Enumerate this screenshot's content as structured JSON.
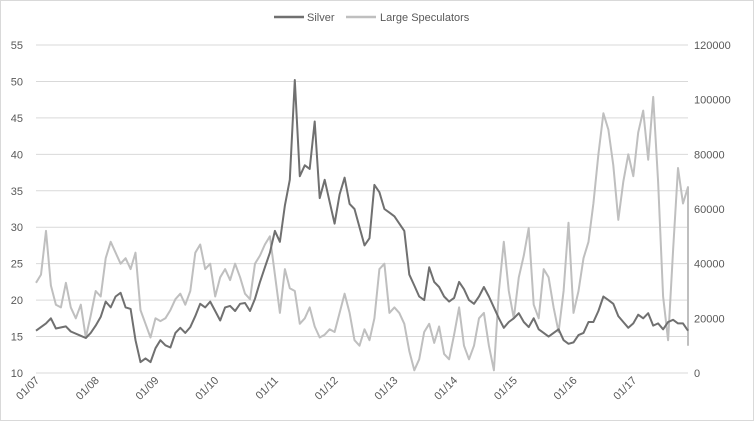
{
  "chart_data": {
    "type": "line",
    "title": "",
    "xlabel": "",
    "ylabel": "",
    "y2label": "",
    "legend_position": "top",
    "grid": "horizontal",
    "x_range": [
      "2007-01",
      "2017-12"
    ],
    "x_tick_labels": [
      "01/07",
      "01/08",
      "01/09",
      "01/10",
      "01/11",
      "01/12",
      "01/13",
      "01/14",
      "01/15",
      "01/16",
      "01/17"
    ],
    "y_left": {
      "min": 10,
      "max": 55,
      "ticks": [
        10,
        15,
        20,
        25,
        30,
        35,
        40,
        45,
        50,
        55
      ]
    },
    "y_right": {
      "min": 0,
      "max": 120000,
      "ticks": [
        0,
        20000,
        40000,
        60000,
        80000,
        100000,
        120000
      ]
    },
    "series": [
      {
        "name": "Silver",
        "axis": "left",
        "color": "#707070",
        "points": [
          [
            "2007-01",
            15.8
          ],
          [
            "2007-03",
            16.8
          ],
          [
            "2007-04",
            17.5
          ],
          [
            "2007-05",
            16.1
          ],
          [
            "2007-07",
            16.4
          ],
          [
            "2007-08",
            15.7
          ],
          [
            "2007-10",
            15.1
          ],
          [
            "2007-11",
            14.8
          ],
          [
            "2007-12",
            15.5
          ],
          [
            "2008-01",
            16.5
          ],
          [
            "2008-02",
            17.7
          ],
          [
            "2008-03",
            19.8
          ],
          [
            "2008-04",
            19.0
          ],
          [
            "2008-05",
            20.5
          ],
          [
            "2008-06",
            21.0
          ],
          [
            "2008-07",
            19.0
          ],
          [
            "2008-08",
            18.8
          ],
          [
            "2008-09",
            14.5
          ],
          [
            "2008-10",
            11.5
          ],
          [
            "2008-11",
            12.0
          ],
          [
            "2008-12",
            11.5
          ],
          [
            "2009-01",
            13.4
          ],
          [
            "2009-02",
            14.5
          ],
          [
            "2009-03",
            13.8
          ],
          [
            "2009-04",
            13.5
          ],
          [
            "2009-05",
            15.5
          ],
          [
            "2009-06",
            16.2
          ],
          [
            "2009-07",
            15.5
          ],
          [
            "2009-08",
            16.3
          ],
          [
            "2009-09",
            17.8
          ],
          [
            "2009-10",
            19.5
          ],
          [
            "2009-11",
            19.0
          ],
          [
            "2009-12",
            19.8
          ],
          [
            "2010-01",
            18.5
          ],
          [
            "2010-02",
            17.2
          ],
          [
            "2010-03",
            19.0
          ],
          [
            "2010-04",
            19.2
          ],
          [
            "2010-05",
            18.5
          ],
          [
            "2010-06",
            19.5
          ],
          [
            "2010-07",
            19.6
          ],
          [
            "2010-08",
            18.5
          ],
          [
            "2010-09",
            20.2
          ],
          [
            "2010-10",
            22.5
          ],
          [
            "2010-11",
            24.5
          ],
          [
            "2010-12",
            26.5
          ],
          [
            "2011-01",
            29.5
          ],
          [
            "2011-02",
            28.0
          ],
          [
            "2011-03",
            33.0
          ],
          [
            "2011-04",
            36.5
          ],
          [
            "2011-05",
            50.2
          ],
          [
            "2011-06",
            37.0
          ],
          [
            "2011-07",
            38.5
          ],
          [
            "2011-08",
            38.0
          ],
          [
            "2011-09",
            44.5
          ],
          [
            "2011-10",
            34.0
          ],
          [
            "2011-11",
            36.5
          ],
          [
            "2011-12",
            33.5
          ],
          [
            "2012-01",
            30.5
          ],
          [
            "2012-02",
            34.5
          ],
          [
            "2012-03",
            36.8
          ],
          [
            "2012-04",
            33.2
          ],
          [
            "2012-05",
            32.5
          ],
          [
            "2012-06",
            30.0
          ],
          [
            "2012-07",
            27.5
          ],
          [
            "2012-08",
            28.5
          ],
          [
            "2012-09",
            35.8
          ],
          [
            "2012-10",
            34.8
          ],
          [
            "2012-11",
            32.5
          ],
          [
            "2012-12",
            32.0
          ],
          [
            "2013-01",
            31.5
          ],
          [
            "2013-02",
            30.5
          ],
          [
            "2013-03",
            29.5
          ],
          [
            "2013-04",
            23.5
          ],
          [
            "2013-05",
            22.0
          ],
          [
            "2013-06",
            20.5
          ],
          [
            "2013-07",
            20.0
          ],
          [
            "2013-08",
            24.5
          ],
          [
            "2013-09",
            22.5
          ],
          [
            "2013-10",
            21.8
          ],
          [
            "2013-11",
            20.5
          ],
          [
            "2013-12",
            19.8
          ],
          [
            "2014-01",
            20.3
          ],
          [
            "2014-02",
            22.5
          ],
          [
            "2014-03",
            21.5
          ],
          [
            "2014-04",
            20.0
          ],
          [
            "2014-05",
            19.5
          ],
          [
            "2014-06",
            20.5
          ],
          [
            "2014-07",
            21.8
          ],
          [
            "2014-08",
            20.5
          ],
          [
            "2014-09",
            19.0
          ],
          [
            "2014-10",
            17.5
          ],
          [
            "2014-11",
            16.2
          ],
          [
            "2014-12",
            17.0
          ],
          [
            "2015-01",
            17.5
          ],
          [
            "2015-02",
            18.2
          ],
          [
            "2015-03",
            17.0
          ],
          [
            "2015-04",
            16.3
          ],
          [
            "2015-05",
            17.5
          ],
          [
            "2015-06",
            16.0
          ],
          [
            "2015-07",
            15.5
          ],
          [
            "2015-08",
            15.0
          ],
          [
            "2015-09",
            15.5
          ],
          [
            "2015-10",
            16.0
          ],
          [
            "2015-11",
            14.5
          ],
          [
            "2015-12",
            14.0
          ],
          [
            "2016-01",
            14.2
          ],
          [
            "2016-02",
            15.2
          ],
          [
            "2016-03",
            15.5
          ],
          [
            "2016-04",
            17.0
          ],
          [
            "2016-05",
            17.0
          ],
          [
            "2016-06",
            18.5
          ],
          [
            "2016-07",
            20.5
          ],
          [
            "2016-08",
            20.0
          ],
          [
            "2016-09",
            19.5
          ],
          [
            "2016-10",
            17.8
          ],
          [
            "2016-11",
            17.0
          ],
          [
            "2016-12",
            16.2
          ],
          [
            "2017-01",
            16.8
          ],
          [
            "2017-02",
            18.0
          ],
          [
            "2017-03",
            17.5
          ],
          [
            "2017-04",
            18.2
          ],
          [
            "2017-05",
            16.5
          ],
          [
            "2017-06",
            16.8
          ],
          [
            "2017-07",
            16.0
          ],
          [
            "2017-08",
            17.0
          ],
          [
            "2017-09",
            17.3
          ],
          [
            "2017-10",
            16.8
          ],
          [
            "2017-11",
            16.8
          ],
          [
            "2017-12",
            15.8
          ]
        ]
      },
      {
        "name": "Large Speculators",
        "axis": "right",
        "color": "#bfbfbf",
        "points": [
          [
            "2007-01",
            33000
          ],
          [
            "2007-02",
            36000
          ],
          [
            "2007-03",
            52000
          ],
          [
            "2007-04",
            32000
          ],
          [
            "2007-05",
            25000
          ],
          [
            "2007-06",
            24000
          ],
          [
            "2007-07",
            33000
          ],
          [
            "2007-08",
            24000
          ],
          [
            "2007-09",
            20000
          ],
          [
            "2007-10",
            25000
          ],
          [
            "2007-11",
            13000
          ],
          [
            "2007-12",
            21000
          ],
          [
            "2008-01",
            30000
          ],
          [
            "2008-02",
            28000
          ],
          [
            "2008-03",
            42000
          ],
          [
            "2008-04",
            48000
          ],
          [
            "2008-05",
            44000
          ],
          [
            "2008-06",
            40000
          ],
          [
            "2008-07",
            42000
          ],
          [
            "2008-08",
            38000
          ],
          [
            "2008-09",
            44000
          ],
          [
            "2008-10",
            23000
          ],
          [
            "2008-11",
            18000
          ],
          [
            "2008-12",
            13000
          ],
          [
            "2009-01",
            20000
          ],
          [
            "2009-02",
            19000
          ],
          [
            "2009-03",
            20000
          ],
          [
            "2009-04",
            23000
          ],
          [
            "2009-05",
            27000
          ],
          [
            "2009-06",
            29000
          ],
          [
            "2009-07",
            25000
          ],
          [
            "2009-08",
            30000
          ],
          [
            "2009-09",
            44000
          ],
          [
            "2009-10",
            47000
          ],
          [
            "2009-11",
            38000
          ],
          [
            "2009-12",
            40000
          ],
          [
            "2010-01",
            28000
          ],
          [
            "2010-02",
            35000
          ],
          [
            "2010-03",
            38000
          ],
          [
            "2010-04",
            34000
          ],
          [
            "2010-05",
            40000
          ],
          [
            "2010-06",
            35000
          ],
          [
            "2010-07",
            29000
          ],
          [
            "2010-08",
            27000
          ],
          [
            "2010-09",
            40000
          ],
          [
            "2010-10",
            43000
          ],
          [
            "2010-11",
            47000
          ],
          [
            "2010-12",
            50000
          ],
          [
            "2011-01",
            36000
          ],
          [
            "2011-02",
            22000
          ],
          [
            "2011-03",
            38000
          ],
          [
            "2011-04",
            31000
          ],
          [
            "2011-05",
            30000
          ],
          [
            "2011-06",
            18000
          ],
          [
            "2011-07",
            20000
          ],
          [
            "2011-08",
            24000
          ],
          [
            "2011-09",
            17000
          ],
          [
            "2011-10",
            13000
          ],
          [
            "2011-11",
            14000
          ],
          [
            "2011-12",
            16000
          ],
          [
            "2012-01",
            15000
          ],
          [
            "2012-02",
            22000
          ],
          [
            "2012-03",
            29000
          ],
          [
            "2012-04",
            22000
          ],
          [
            "2012-05",
            12000
          ],
          [
            "2012-06",
            10000
          ],
          [
            "2012-07",
            16000
          ],
          [
            "2012-08",
            12000
          ],
          [
            "2012-09",
            20000
          ],
          [
            "2012-10",
            38000
          ],
          [
            "2012-11",
            40000
          ],
          [
            "2012-12",
            22000
          ],
          [
            "2013-01",
            24000
          ],
          [
            "2013-02",
            22000
          ],
          [
            "2013-03",
            18000
          ],
          [
            "2013-04",
            8000
          ],
          [
            "2013-05",
            1000
          ],
          [
            "2013-06",
            5000
          ],
          [
            "2013-07",
            15000
          ],
          [
            "2013-08",
            18000
          ],
          [
            "2013-09",
            11000
          ],
          [
            "2013-10",
            17000
          ],
          [
            "2013-11",
            7000
          ],
          [
            "2013-12",
            5000
          ],
          [
            "2014-01",
            14000
          ],
          [
            "2014-02",
            24000
          ],
          [
            "2014-03",
            10000
          ],
          [
            "2014-04",
            5000
          ],
          [
            "2014-05",
            10000
          ],
          [
            "2014-06",
            20000
          ],
          [
            "2014-07",
            22000
          ],
          [
            "2014-08",
            10000
          ],
          [
            "2014-09",
            1000
          ],
          [
            "2014-10",
            30000
          ],
          [
            "2014-11",
            48000
          ],
          [
            "2014-12",
            30000
          ],
          [
            "2015-01",
            20000
          ],
          [
            "2015-02",
            35000
          ],
          [
            "2015-03",
            43000
          ],
          [
            "2015-04",
            53000
          ],
          [
            "2015-05",
            25000
          ],
          [
            "2015-06",
            20000
          ],
          [
            "2015-07",
            38000
          ],
          [
            "2015-08",
            35000
          ],
          [
            "2015-09",
            24000
          ],
          [
            "2015-10",
            15000
          ],
          [
            "2015-11",
            30000
          ],
          [
            "2015-12",
            55000
          ],
          [
            "2016-01",
            22000
          ],
          [
            "2016-02",
            30000
          ],
          [
            "2016-03",
            42000
          ],
          [
            "2016-04",
            48000
          ],
          [
            "2016-05",
            62000
          ],
          [
            "2016-06",
            80000
          ],
          [
            "2016-07",
            95000
          ],
          [
            "2016-08",
            89000
          ],
          [
            "2016-09",
            76000
          ],
          [
            "2016-10",
            56000
          ],
          [
            "2016-11",
            70000
          ],
          [
            "2016-12",
            80000
          ],
          [
            "2017-01",
            72000
          ],
          [
            "2017-02",
            88000
          ],
          [
            "2017-03",
            96000
          ],
          [
            "2017-04",
            78000
          ],
          [
            "2017-05",
            101000
          ],
          [
            "2017-06",
            70000
          ],
          [
            "2017-07",
            28000
          ],
          [
            "2017-08",
            12000
          ],
          [
            "2017-09",
            45000
          ],
          [
            "2017-10",
            75000
          ],
          [
            "2017-11",
            62000
          ],
          [
            "2017-12",
            68000
          ],
          [
            "2018-01",
            10000
          ]
        ]
      }
    ]
  }
}
